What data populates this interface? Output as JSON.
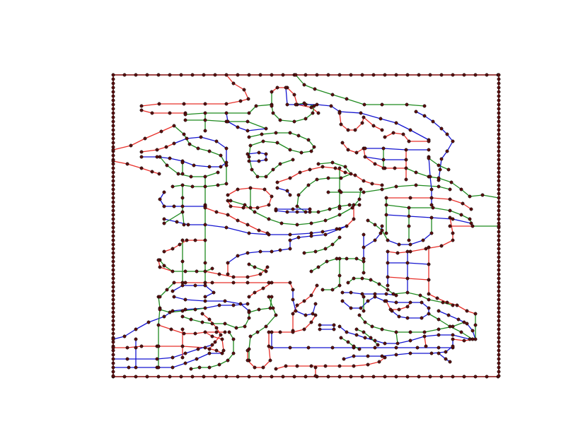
{
  "diagram": {
    "type": "planar-graph",
    "colors": {
      "border": "#8b1a1a",
      "red": "#e8302a",
      "green": "#1f8a1f",
      "blue": "#1515d0",
      "node_fill": "#5a0f0f",
      "node_stroke": "#000000",
      "background": "#ffffff"
    },
    "edge_color_legend": [
      "red",
      "green",
      "blue"
    ]
  }
}
